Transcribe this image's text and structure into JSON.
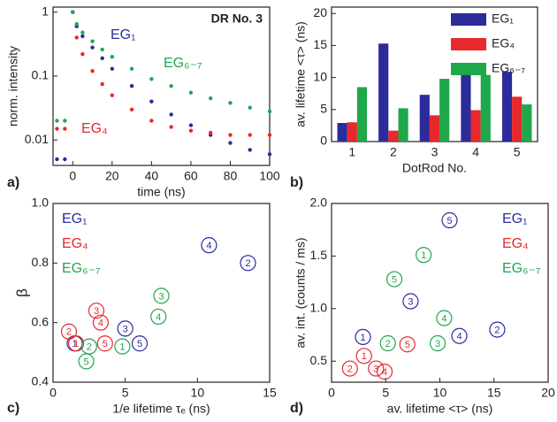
{
  "chart_data": [
    {
      "type": "scatter",
      "panel_label": "a)",
      "annotation": "DR No. 3",
      "x_label": "time (ns)",
      "y_label": "norm. intensity",
      "log_y": true,
      "xlim": [
        -10,
        100
      ],
      "xticks": [
        0,
        20,
        40,
        60,
        80,
        100
      ],
      "ylim": [
        0.004,
        1.2
      ],
      "yticks": [
        0.01,
        0.1,
        1
      ],
      "x": [
        -8,
        -4,
        0,
        2,
        5,
        10,
        15,
        20,
        30,
        40,
        50,
        60,
        70,
        80,
        90,
        100
      ],
      "series": [
        {
          "name": "EG₁",
          "color": "#2b2b9c",
          "values": [
            0.005,
            0.005,
            1,
            0.6,
            0.42,
            0.28,
            0.19,
            0.13,
            0.07,
            0.04,
            0.025,
            0.017,
            0.012,
            0.009,
            0.007,
            0.006
          ]
        },
        {
          "name": "EG₄",
          "color": "#e8282b",
          "values": [
            0.015,
            0.015,
            1,
            0.4,
            0.22,
            0.12,
            0.075,
            0.05,
            0.03,
            0.02,
            0.016,
            0.014,
            0.013,
            0.012,
            0.012,
            0.012
          ]
        },
        {
          "name": "EG₆₋₇",
          "color": "#1fa84a",
          "values": [
            0.02,
            0.02,
            1,
            0.65,
            0.48,
            0.35,
            0.26,
            0.2,
            0.13,
            0.09,
            0.07,
            0.055,
            0.045,
            0.038,
            0.032,
            0.028
          ]
        }
      ]
    },
    {
      "type": "bar",
      "panel_label": "b)",
      "x_label": "DotRod No.",
      "y_label": "av. lifetime <τ> (ns)",
      "categories": [
        "1",
        "2",
        "3",
        "4",
        "5"
      ],
      "ylim": [
        0,
        21
      ],
      "yticks": [
        0,
        5,
        10,
        15,
        20
      ],
      "legend": "top-right",
      "series": [
        {
          "name": "EG₁",
          "color": "#2b2b9c",
          "values": [
            2.9,
            15.3,
            7.3,
            11.8,
            10.9
          ]
        },
        {
          "name": "EG₄",
          "color": "#e8282b",
          "values": [
            3.0,
            1.7,
            4.1,
            4.9,
            7.0
          ]
        },
        {
          "name": "EG₆₋₇",
          "color": "#1fa84a",
          "values": [
            8.5,
            5.2,
            9.8,
            10.4,
            5.8
          ]
        }
      ]
    },
    {
      "type": "labeled-scatter",
      "panel_label": "c)",
      "x_label": "1/e lifetime τₑ (ns)",
      "y_label": "β",
      "xlim": [
        0,
        15
      ],
      "xticks": [
        0,
        5,
        10,
        15
      ],
      "ylim": [
        0.4,
        1.0
      ],
      "yticks": [
        0.4,
        0.6,
        0.8,
        {
          "value": 1.0,
          "label": "1.0"
        }
      ],
      "legend": "top-left",
      "series": [
        {
          "name": "EG₁",
          "color": "#2b2b9c",
          "x": [
            1.5,
            13.5,
            5.0,
            10.8,
            6.0
          ],
          "values": [
            0.53,
            0.8,
            0.58,
            0.86,
            0.53
          ],
          "point_labels": [
            "1",
            "2",
            "3",
            "4",
            "5"
          ]
        },
        {
          "name": "EG₄",
          "color": "#e8282b",
          "x": [
            1.6,
            1.1,
            3.0,
            3.3,
            3.6
          ],
          "values": [
            0.53,
            0.57,
            0.64,
            0.6,
            0.53
          ],
          "point_labels": [
            "1",
            "2",
            "3",
            "4",
            "5"
          ]
        },
        {
          "name": "EG₆₋₇",
          "color": "#1fa84a",
          "x": [
            4.8,
            2.5,
            7.5,
            7.3,
            2.3
          ],
          "values": [
            0.52,
            0.52,
            0.69,
            0.62,
            0.47
          ],
          "point_labels": [
            "1",
            "2",
            "3",
            "4",
            "5"
          ]
        }
      ]
    },
    {
      "type": "labeled-scatter",
      "panel_label": "d)",
      "x_label": "av. lifetime <τ> (ns)",
      "y_label": "av. int. (counts / ms)",
      "xlim": [
        0,
        20
      ],
      "xticks": [
        0,
        5,
        10,
        15,
        20
      ],
      "ylim": [
        0.3,
        2.0
      ],
      "yticks": [
        0.5,
        {
          "value": 1.0,
          "label": "1.0"
        },
        1.5,
        {
          "value": 2.0,
          "label": "2.0"
        }
      ],
      "legend": "top-right",
      "series": [
        {
          "name": "EG₁",
          "color": "#2b2b9c",
          "x": [
            2.9,
            15.3,
            7.3,
            11.8,
            10.9
          ],
          "values": [
            0.73,
            0.8,
            1.07,
            0.74,
            1.84
          ],
          "point_labels": [
            "1",
            "2",
            "3",
            "4",
            "5"
          ]
        },
        {
          "name": "EG₄",
          "color": "#e8282b",
          "x": [
            3.0,
            1.7,
            4.1,
            4.9,
            7.0
          ],
          "values": [
            0.55,
            0.43,
            0.43,
            0.4,
            0.66
          ],
          "point_labels": [
            "1",
            "2",
            "3",
            "4",
            "5"
          ]
        },
        {
          "name": "EG₆₋₇",
          "color": "#1fa84a",
          "x": [
            8.5,
            5.2,
            9.8,
            10.4,
            5.8
          ],
          "values": [
            1.51,
            0.67,
            0.67,
            0.91,
            1.28
          ],
          "point_labels": [
            "1",
            "2",
            "3",
            "4",
            "5"
          ]
        }
      ]
    }
  ]
}
